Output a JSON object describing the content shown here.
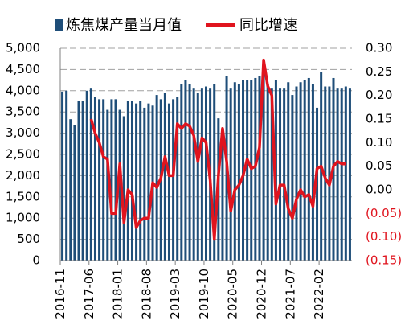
{
  "chart_data": {
    "type": "bar",
    "categories": [
      "2016-11",
      null,
      null,
      null,
      null,
      null,
      null,
      "2017-06",
      null,
      null,
      null,
      null,
      null,
      null,
      "2018-01",
      null,
      null,
      null,
      null,
      null,
      null,
      "2018-08",
      null,
      null,
      null,
      null,
      null,
      null,
      "2019-03",
      null,
      null,
      null,
      null,
      null,
      null,
      "2019-10",
      null,
      null,
      null,
      null,
      null,
      null,
      "2020-05",
      null,
      null,
      null,
      null,
      null,
      null,
      "2020-12",
      null,
      null,
      null,
      null,
      null,
      null,
      "2021-07",
      null,
      null,
      null,
      null,
      null,
      null,
      "2022-02",
      null,
      null,
      null,
      null,
      null,
      null,
      null
    ],
    "series": [
      {
        "name": "炼焦煤产量当月值",
        "type": "bar",
        "color": "#1f4e79",
        "values": [
          3980,
          4000,
          3330,
          3200,
          3750,
          3760,
          4000,
          4050,
          3850,
          3800,
          3800,
          3550,
          3800,
          3800,
          3550,
          3400,
          3750,
          3750,
          3700,
          3750,
          3600,
          3700,
          3650,
          3900,
          3800,
          3950,
          3700,
          3800,
          3850,
          4150,
          4250,
          4150,
          4050,
          3950,
          4050,
          4100,
          4050,
          4150,
          3350,
          3100,
          4350,
          4050,
          4200,
          4150,
          4250,
          4250,
          4250,
          4300,
          4350,
          4400,
          4150,
          4050,
          4250,
          4050,
          4050,
          4200,
          3900,
          4100,
          4200,
          4250,
          4300,
          4150,
          3600,
          4450,
          4100,
          4100,
          4300,
          4050,
          4050,
          4100,
          4050
        ]
      },
      {
        "name": "同比增速",
        "type": "line",
        "axis": "y2",
        "color": "#e0141e",
        "values": [
          null,
          null,
          null,
          null,
          null,
          null,
          null,
          0.15,
          0.12,
          0.1,
          0.07,
          0.065,
          -0.05,
          -0.05,
          0.055,
          -0.07,
          0.0,
          -0.01,
          -0.08,
          -0.065,
          -0.06,
          -0.06,
          0.015,
          0.005,
          0.025,
          0.07,
          0.03,
          0.03,
          0.14,
          0.13,
          0.14,
          0.135,
          0.115,
          0.06,
          0.11,
          0.1,
          0.02,
          -0.105,
          0.03,
          0.13,
          0.06,
          -0.045,
          0.0,
          0.01,
          0.03,
          0.065,
          0.045,
          0.05,
          0.09,
          0.275,
          0.22,
          0.2,
          -0.03,
          0.01,
          0.01,
          -0.04,
          -0.06,
          -0.02,
          0.0,
          -0.015,
          -0.01,
          -0.035,
          0.045,
          0.05,
          0.025,
          0.01,
          0.05,
          0.06,
          0.055,
          0.055,
          null
        ]
      }
    ],
    "ylim": [
      0,
      5000
    ],
    "yticks": [
      0,
      500,
      {
        "value": 1000,
        "label": "1,000"
      },
      {
        "value": 1500,
        "label": "1,500"
      },
      {
        "value": 2000,
        "label": "2,000"
      },
      {
        "value": 2500,
        "label": "2,500"
      },
      {
        "value": 3000,
        "label": "3,000"
      },
      {
        "value": 3500,
        "label": "3,500"
      },
      {
        "value": 4000,
        "label": "4,000"
      },
      {
        "value": 4500,
        "label": "4,500"
      },
      {
        "value": 5000,
        "label": "5,000"
      }
    ],
    "y2lim": [
      -0.15,
      0.3
    ],
    "y2ticks": [
      {
        "value": -0.15,
        "label": "(0.15)"
      },
      {
        "value": -0.1,
        "label": "(0.10)"
      },
      {
        "value": -0.05,
        "label": "(0.05)"
      },
      {
        "value": 0,
        "label": "0.00"
      },
      {
        "value": 0.05,
        "label": "0.05"
      },
      {
        "value": 0.1,
        "label": "0.10"
      },
      {
        "value": 0.15,
        "label": "0.15"
      },
      {
        "value": 0.2,
        "label": "0.20"
      },
      {
        "value": 0.25,
        "label": "0.25"
      },
      {
        "value": 0.3,
        "label": "0.30"
      }
    ],
    "y2_negative_color": "#e0141e",
    "grid": true,
    "legend": "top"
  }
}
